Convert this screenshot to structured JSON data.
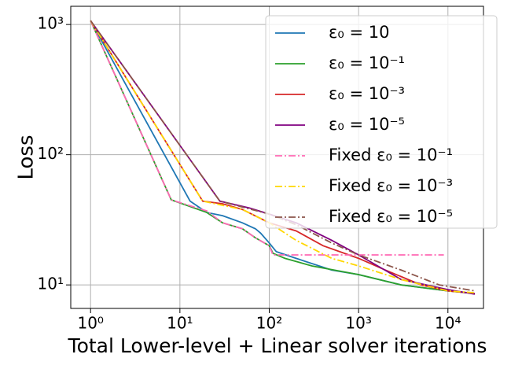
{
  "chart_data": {
    "type": "line",
    "xlabel": "Total Lower-level + Linear solver iterations",
    "ylabel": "Loss",
    "xscale": "log",
    "yscale": "log",
    "grid": true,
    "legend": "upper right",
    "xlim": [
      0.6,
      25000
    ],
    "ylim": [
      6.6,
      1380
    ],
    "xticks": [
      {
        "value": 1,
        "label": "10⁰"
      },
      {
        "value": 10,
        "label": "10¹"
      },
      {
        "value": 100,
        "label": "10²"
      },
      {
        "value": 1000,
        "label": "10³"
      },
      {
        "value": 10000,
        "label": "10⁴"
      }
    ],
    "yticks": [
      {
        "value": 10,
        "label": "10¹"
      },
      {
        "value": 100,
        "label": "10²"
      },
      {
        "value": 1000,
        "label": "10³"
      }
    ],
    "series": [
      {
        "name": "ε₀ = 10",
        "color": "#1f77b4",
        "linestyle": "solid",
        "x": [
          1,
          13,
          20,
          30,
          50,
          70,
          80,
          100,
          120,
          200,
          500,
          1000,
          3000,
          10000,
          20000
        ],
        "values": [
          1070,
          44,
          36,
          34,
          30,
          27,
          25,
          21,
          18,
          16,
          13,
          12,
          10,
          9,
          8.6
        ]
      },
      {
        "name": "ε₀ = 10⁻¹",
        "color": "#2ca02c",
        "linestyle": "solid",
        "x": [
          1,
          8,
          20,
          30,
          50,
          70,
          100,
          110,
          150,
          300,
          1000,
          3000,
          10000,
          20000
        ],
        "values": [
          1070,
          45,
          36,
          30,
          27,
          23,
          20,
          17.5,
          16,
          14,
          12,
          10,
          9,
          8.6
        ]
      },
      {
        "name": "ε₀ = 10⁻³",
        "color": "#d62728",
        "linestyle": "solid",
        "x": [
          1,
          18,
          30,
          50,
          100,
          200,
          400,
          1000,
          2000,
          5000,
          10000,
          20000
        ],
        "values": [
          1070,
          44,
          42,
          38,
          30,
          26,
          20,
          16,
          13,
          10,
          9,
          8.6
        ]
      },
      {
        "name": "ε₀ = 10⁻⁵",
        "color": "#800080",
        "linestyle": "solid",
        "x": [
          1,
          28,
          60,
          100,
          200,
          500,
          1000,
          3000,
          10000,
          20000
        ],
        "values": [
          1070,
          44,
          39,
          35,
          30,
          22,
          17,
          11,
          9.2,
          8.5
        ]
      },
      {
        "name": "Fixed ε₀ = 10⁻¹",
        "color": "#ff69b4",
        "linestyle": "dashdot",
        "x": [
          1,
          8,
          20,
          30,
          50,
          70,
          100,
          110,
          9000
        ],
        "values": [
          1070,
          45,
          37,
          30,
          27,
          23,
          20,
          17,
          17
        ]
      },
      {
        "name": "Fixed ε₀ = 10⁻³",
        "color": "#ffd700",
        "linestyle": "dashdot",
        "x": [
          1,
          18,
          50,
          100,
          200,
          500,
          1000,
          3000,
          10000,
          20000
        ],
        "values": [
          1070,
          44,
          38,
          30,
          22,
          16,
          14,
          11,
          9,
          8.7
        ]
      },
      {
        "name": "Fixed ε₀ = 10⁻⁵",
        "color": "#8c564b",
        "linestyle": "dashdot",
        "x": [
          1,
          28,
          100,
          200,
          500,
          1000,
          3000,
          8000,
          20000
        ],
        "values": [
          1070,
          44,
          35,
          29,
          21,
          17,
          13,
          10,
          9
        ]
      }
    ]
  }
}
